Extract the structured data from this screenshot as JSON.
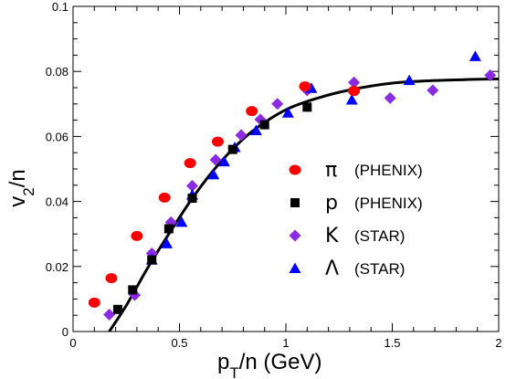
{
  "chart_data": {
    "type": "scatter",
    "xlabel": "p_T/n (GeV)",
    "ylabel": "v_2/n",
    "xlim": [
      0,
      2
    ],
    "ylim": [
      0,
      0.1
    ],
    "xticks": [
      "0",
      "0.5",
      "1",
      "1.5",
      "2"
    ],
    "yticks": [
      "0",
      "0.02",
      "0.04",
      "0.06",
      "0.08",
      "0.1"
    ],
    "legend_position": "center-right",
    "series": [
      {
        "name": "π",
        "source": "(PHENIX)",
        "marker": "circle",
        "color": "#ff0000",
        "points": [
          [
            0.1,
            0.0089
          ],
          [
            0.18,
            0.0164
          ],
          [
            0.3,
            0.0294
          ],
          [
            0.43,
            0.0412
          ],
          [
            0.55,
            0.0518
          ],
          [
            0.68,
            0.0584
          ],
          [
            0.84,
            0.0678
          ],
          [
            1.09,
            0.0754
          ],
          [
            1.32,
            0.074
          ]
        ]
      },
      {
        "name": "p",
        "source": "(PHENIX)",
        "marker": "square",
        "color": "#000000",
        "points": [
          [
            0.21,
            0.0068
          ],
          [
            0.28,
            0.0128
          ],
          [
            0.37,
            0.022
          ],
          [
            0.45,
            0.0316
          ],
          [
            0.56,
            0.041
          ],
          [
            0.75,
            0.056
          ],
          [
            0.9,
            0.0636
          ],
          [
            1.1,
            0.069
          ]
        ]
      },
      {
        "name": "K",
        "source": "(STAR)",
        "marker": "diamond",
        "color": "#8a2be2",
        "points": [
          [
            0.17,
            0.0052
          ],
          [
            0.29,
            0.0112
          ],
          [
            0.37,
            0.024
          ],
          [
            0.46,
            0.0336
          ],
          [
            0.56,
            0.0448
          ],
          [
            0.67,
            0.0528
          ],
          [
            0.79,
            0.0604
          ],
          [
            0.88,
            0.0652
          ],
          [
            0.96,
            0.07
          ],
          [
            1.1,
            0.0742
          ],
          [
            1.32,
            0.0766
          ],
          [
            1.49,
            0.0718
          ],
          [
            1.69,
            0.0742
          ],
          [
            1.96,
            0.0788
          ]
        ]
      },
      {
        "name": "Λ",
        "source": "(STAR)",
        "marker": "triangle",
        "color": "#0000ff",
        "points": [
          [
            0.37,
            0.022
          ],
          [
            0.44,
            0.027
          ],
          [
            0.51,
            0.0336
          ],
          [
            0.56,
            0.042
          ],
          [
            0.66,
            0.0482
          ],
          [
            0.71,
            0.0522
          ],
          [
            0.76,
            0.0566
          ],
          [
            0.86,
            0.0618
          ],
          [
            1.01,
            0.0672
          ],
          [
            1.12,
            0.0748
          ],
          [
            1.31,
            0.0712
          ],
          [
            1.58,
            0.0772
          ],
          [
            1.89,
            0.0846
          ]
        ]
      }
    ],
    "fit_curve": {
      "color": "#000000",
      "points": [
        [
          0.17,
          0.0
        ],
        [
          0.25,
          0.008
        ],
        [
          0.35,
          0.0195
        ],
        [
          0.45,
          0.03
        ],
        [
          0.55,
          0.04
        ],
        [
          0.65,
          0.0488
        ],
        [
          0.75,
          0.0561
        ],
        [
          0.85,
          0.062
        ],
        [
          1.0,
          0.0682
        ],
        [
          1.15,
          0.0718
        ],
        [
          1.3,
          0.0743
        ],
        [
          1.5,
          0.0764
        ],
        [
          1.7,
          0.0772
        ],
        [
          2.0,
          0.0777
        ]
      ]
    }
  }
}
